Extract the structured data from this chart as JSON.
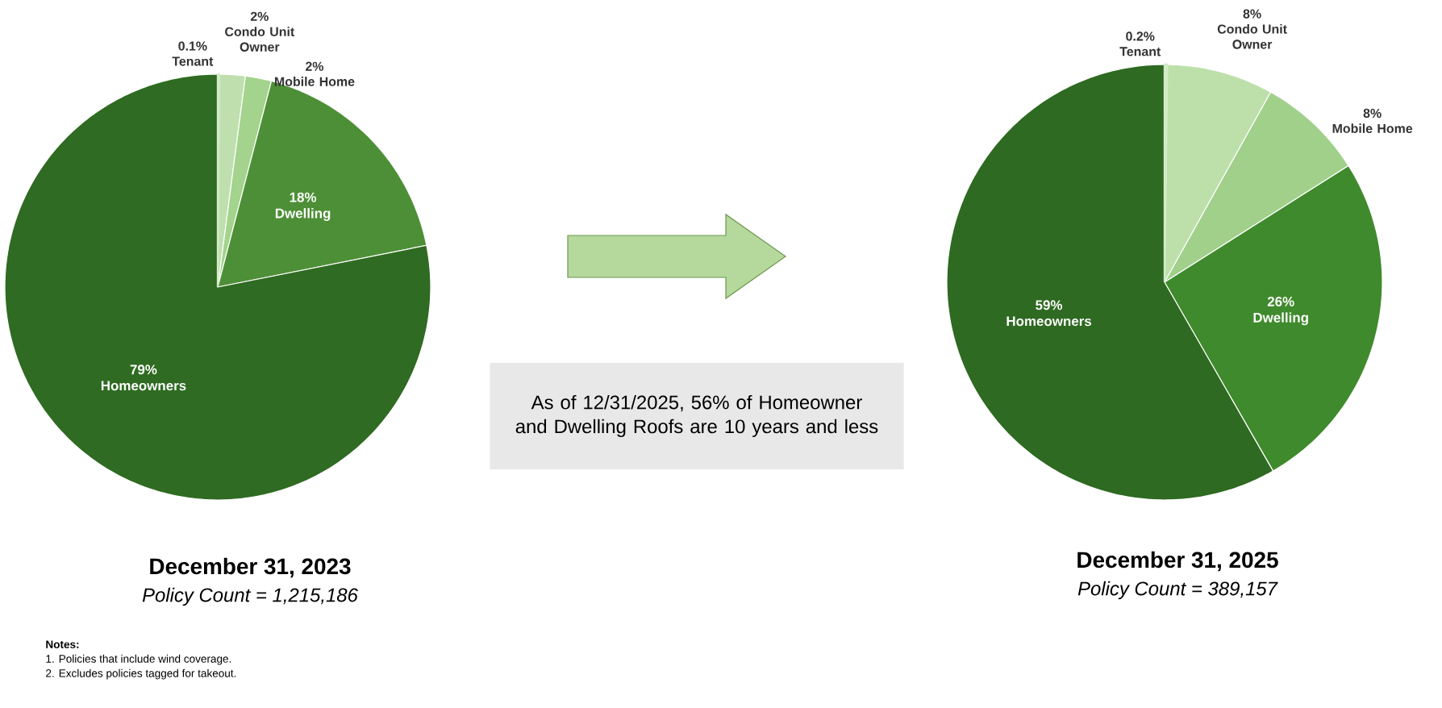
{
  "chart_data": [
    {
      "type": "pie",
      "title": "December 31, 2023",
      "subtitle": "Policy Count = 1,215,186",
      "categories": [
        "Tenant",
        "Condo Unit Owner",
        "Mobile Home",
        "Dwelling",
        "Homeowners"
      ],
      "values": [
        0.1,
        2,
        2,
        18,
        79
      ],
      "value_labels": [
        "0.1%",
        "2%",
        "2%",
        "18%",
        "79%"
      ],
      "colors": [
        "#d3ebc6",
        "#bfe0ae",
        "#a3d38c",
        "#4d8f36",
        "#2f6b22"
      ],
      "annotations": [
        "Notes:",
        "1.   Policies that include wind coverage.",
        "2.   Excludes policies tagged for takeout."
      ]
    },
    {
      "type": "other",
      "annotations": [
        "As of 12/31/2025, 56% of Homeowner and Dwelling Roofs are 10 years and less"
      ]
    },
    {
      "type": "pie",
      "title": "December 31, 2025",
      "subtitle": "Policy Count = 389,157",
      "categories": [
        "Tenant",
        "Condo Unit Owner",
        "Mobile Home",
        "Dwelling",
        "Homeowners"
      ],
      "values": [
        0.2,
        8,
        8,
        26,
        59
      ],
      "value_labels": [
        "0.2%",
        "8%",
        "8%",
        "26%",
        "59%"
      ],
      "colors": [
        "#d3ebc6",
        "#bde0ab",
        "#a0d08a",
        "#3f8a2c",
        "#2e6a21"
      ]
    }
  ]
}
